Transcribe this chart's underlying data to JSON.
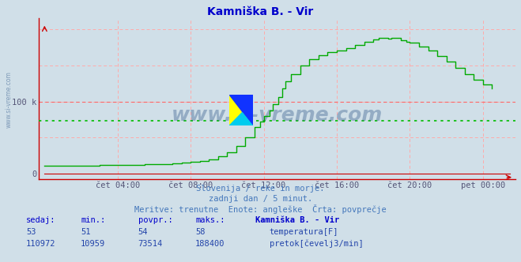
{
  "title": "Kamniška B. - Vir",
  "title_color": "#0000cc",
  "bg_color": "#d0dfe8",
  "plot_bg_color": "#d0dfe8",
  "grid_color_red": "#ffaaaa",
  "temp_color": "#cc0000",
  "flow_color": "#00aa00",
  "avg_line_color": "#00bb00",
  "redline_color": "#ff6666",
  "xlabel_color": "#555577",
  "ylabel_color": "#555577",
  "xtick_labels": [
    "čet 04:00",
    "čet 08:00",
    "čet 12:00",
    "čet 16:00",
    "čet 20:00",
    "pet 00:00"
  ],
  "xtick_positions": [
    4,
    8,
    12,
    16,
    20,
    24
  ],
  "ytick_labels": [
    "0",
    "100 k"
  ],
  "ytick_positions": [
    0,
    100000
  ],
  "ylim": [
    -8000,
    215000
  ],
  "xlim": [
    -0.3,
    25.8
  ],
  "temp_value": 53,
  "avg_flow": 73514,
  "red_ref_line": 100000,
  "subtitle1": "Slovenija / reke in morje.",
  "subtitle2": "zadnji dan / 5 minut.",
  "subtitle3": "Meritve: trenutne  Enote: angleške  Črta: povprečje",
  "subtitle_color": "#4477bb",
  "table_header": [
    "sedaj:",
    "min.:",
    "povpr.:",
    "maks.:",
    "Kamniška B. - Vir"
  ],
  "table_row1": [
    "53",
    "51",
    "54",
    "58"
  ],
  "table_row2": [
    "110972",
    "10959",
    "73514",
    "188400"
  ],
  "label_temp": "temperatura[F]",
  "label_flow": "pretok[čevelj3/min]",
  "watermark": "www.si-vreme.com",
  "flow_data_x": [
    0.0,
    0.5,
    1.0,
    1.5,
    2.0,
    2.5,
    3.0,
    3.5,
    4.0,
    4.5,
    5.0,
    5.5,
    6.0,
    6.5,
    7.0,
    7.5,
    8.0,
    8.5,
    9.0,
    9.5,
    10.0,
    10.5,
    11.0,
    11.5,
    11.8,
    12.0,
    12.3,
    12.5,
    12.8,
    13.0,
    13.2,
    13.5,
    14.0,
    14.5,
    15.0,
    15.5,
    16.0,
    16.5,
    17.0,
    17.5,
    18.0,
    18.3,
    18.5,
    18.8,
    19.0,
    19.3,
    19.5,
    19.8,
    20.0,
    20.5,
    21.0,
    21.5,
    22.0,
    22.5,
    23.0,
    23.5,
    24.0,
    24.5
  ],
  "flow_data_y": [
    10500,
    10600,
    10800,
    11000,
    11200,
    11400,
    11600,
    11800,
    12000,
    12200,
    12400,
    12700,
    13000,
    13500,
    14000,
    15000,
    16500,
    18000,
    20000,
    24000,
    30000,
    38000,
    50000,
    65000,
    72000,
    80000,
    88000,
    96000,
    106000,
    118000,
    128000,
    138000,
    150000,
    158000,
    164000,
    168000,
    170000,
    174000,
    178000,
    183000,
    186000,
    188000,
    188400,
    187000,
    188000,
    187500,
    185000,
    183000,
    181000,
    176000,
    170000,
    163000,
    155000,
    147000,
    138000,
    130000,
    123000,
    118000
  ]
}
